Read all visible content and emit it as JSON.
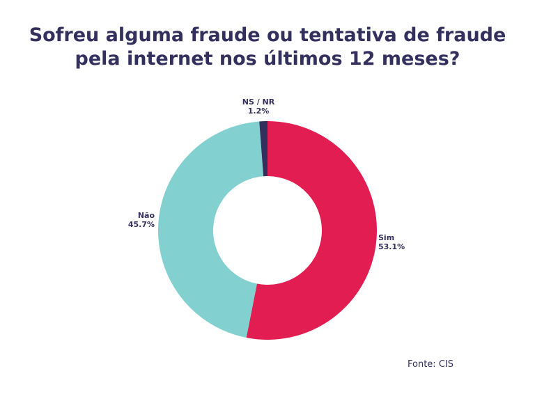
{
  "chart_data": {
    "type": "pie",
    "donut": true,
    "title_lines": [
      "Sofreu alguma fraude ou tentativa de fraude",
      "pela internet nos últimos 12 meses?"
    ],
    "slices": [
      {
        "label": "Sim",
        "value": 53.1,
        "value_label": "53.1%",
        "color": "#e11d52"
      },
      {
        "label": "Não",
        "value": 45.7,
        "value_label": "45.7%",
        "color": "#82d1d0"
      },
      {
        "label": "NS / NR",
        "value": 1.2,
        "value_label": "1.2%",
        "color": "#33305e"
      }
    ],
    "source": "Fonte: CIS"
  }
}
